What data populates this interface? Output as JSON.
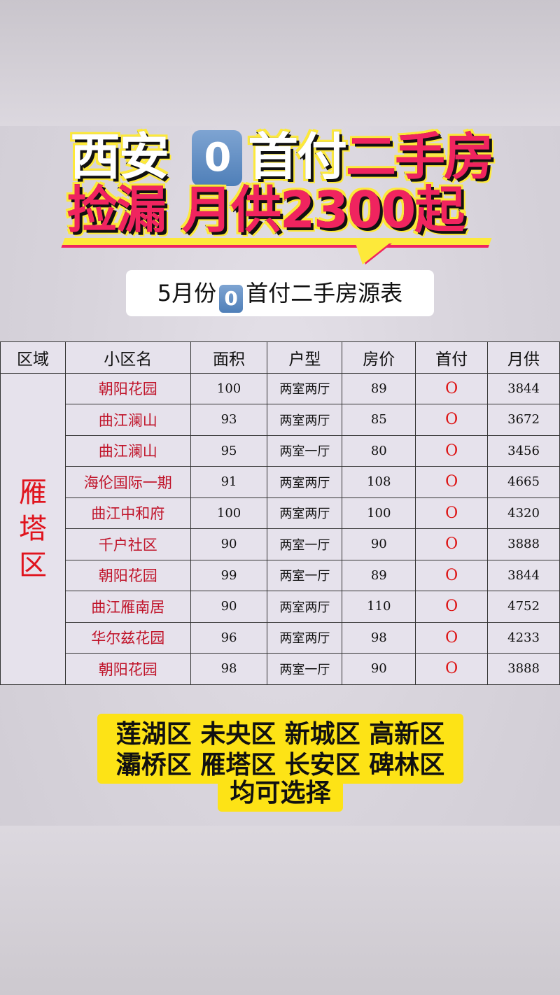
{
  "headline": {
    "line1_white1": "西安",
    "badge": "0",
    "line1_white2": "首付",
    "line1_pink": "二手房",
    "line2_pink1": "捡漏",
    "line2_pink2": "月供2300起"
  },
  "subtitle": {
    "prefix": "5月份",
    "badge": "0",
    "suffix": "首付二手房源表"
  },
  "table": {
    "headers": [
      "区域",
      "小区名",
      "面积",
      "户型",
      "房价",
      "首付",
      "月供"
    ],
    "region": "雁塔区",
    "rows": [
      [
        "朝阳花园",
        "100",
        "两室两厅",
        "89",
        "O",
        "3844"
      ],
      [
        "曲江澜山",
        "93",
        "两室两厅",
        "85",
        "O",
        "3672"
      ],
      [
        "曲江澜山",
        "95",
        "两室一厅",
        "80",
        "O",
        "3456"
      ],
      [
        "海伦国际一期",
        "91",
        "两室两厅",
        "108",
        "O",
        "4665"
      ],
      [
        "曲江中和府",
        "100",
        "两室两厅",
        "100",
        "O",
        "4320"
      ],
      [
        "千户社区",
        "90",
        "两室一厅",
        "90",
        "O",
        "3888"
      ],
      [
        "朝阳花园",
        "99",
        "两室一厅",
        "89",
        "O",
        "3844"
      ],
      [
        "曲江雁南居",
        "90",
        "两室两厅",
        "110",
        "O",
        "4752"
      ],
      [
        "华尔兹花园",
        "96",
        "两室两厅",
        "98",
        "O",
        "4233"
      ],
      [
        "朝阳花园",
        "98",
        "两室一厅",
        "90",
        "O",
        "3888"
      ]
    ]
  },
  "districts": {
    "line1": "莲湖区 未央区 新城区 高新区",
    "line2": "灞桥区 雁塔区 长安区 碑林区",
    "line3": "均可选择"
  },
  "colors": {
    "pink": "#f0245f",
    "yellow": "#fde316",
    "badge_blue": "#5f8cc4",
    "red_text": "#c0142a"
  }
}
